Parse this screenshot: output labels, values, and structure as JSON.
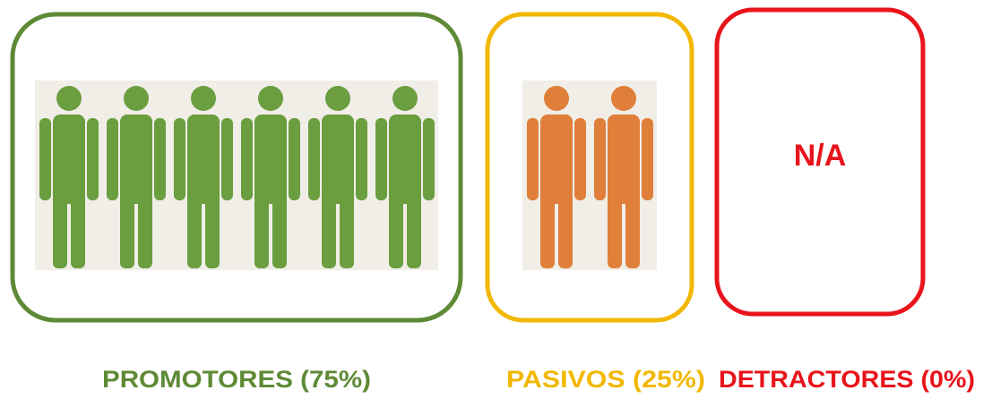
{
  "groups": [
    {
      "label": "PROMOTORES (75%)",
      "icons": 6,
      "color": "#6a9e3f",
      "border": "#5e8a36",
      "text_color": "#5e8a36"
    },
    {
      "label": "PASIVOS (25%)",
      "icons": 2,
      "color": "#e07f3a",
      "border": "#f2b800",
      "text_color": "#f2b800"
    },
    {
      "label": "DETRACTORES (0%)",
      "icons": 0,
      "color": "#e8141b",
      "border": "#e8141b",
      "text_color": "#e8141b",
      "empty_text": "N/A"
    }
  ]
}
